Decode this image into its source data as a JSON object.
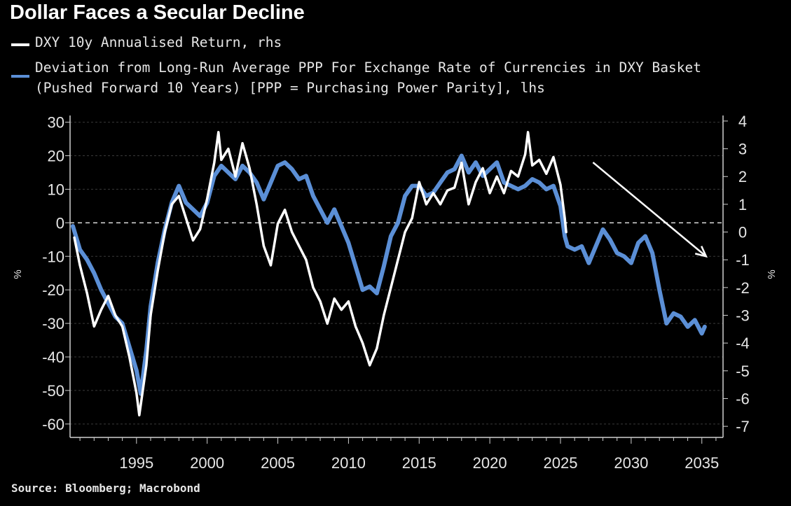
{
  "header": {
    "title": "Dollar Faces a Secular Decline"
  },
  "legend": {
    "white_label": "DXY 10y Annualised Return, rhs",
    "blue_label_line1": "Deviation from Long-Run Average PPP For Exchange Rate of Currencies in DXY Basket",
    "blue_label_line2": "(Pushed Forward 10 Years) [PPP = Purchasing Power Parity], lhs"
  },
  "footer": {
    "source": "Source: Bloomberg; Macrobond"
  },
  "chart_data": {
    "type": "line",
    "title": "Dollar Faces a Secular Decline",
    "x_ticks": [
      "1995",
      "2000",
      "2005",
      "2010",
      "2015",
      "2020",
      "2025",
      "2030",
      "2035"
    ],
    "x_range": [
      1990.3,
      2036.5
    ],
    "left_axis": {
      "label": "%",
      "ticks": [
        "30",
        "20",
        "10",
        "0",
        "-10",
        "-20",
        "-30",
        "-40",
        "-50",
        "-60"
      ],
      "range": [
        -64,
        32
      ]
    },
    "right_axis": {
      "label": "%",
      "ticks": [
        "4",
        "3",
        "2",
        "1",
        "0",
        "-1",
        "-2",
        "-3",
        "-4",
        "-5",
        "-6",
        "-7"
      ],
      "range": [
        -7.4,
        4.2
      ]
    },
    "grid": "horizontal dashed",
    "zero_line": "dashed",
    "annotation": "downward arrow from 2027 to 2035",
    "colors": {
      "blue": "#5b8fd6",
      "white": "#ffffff",
      "background": "#000000",
      "grid": "#3a3a3a"
    },
    "series": [
      {
        "name": "Deviation from Long-Run Average PPP For Exchange Rate of Currencies in DXY Basket (Pushed Forward 10 Years)",
        "axis": "left",
        "color": "#5b8fd6",
        "points": [
          [
            1990.5,
            -1
          ],
          [
            1991,
            -8
          ],
          [
            1991.5,
            -11
          ],
          [
            1992,
            -15
          ],
          [
            1992.5,
            -20
          ],
          [
            1993,
            -24
          ],
          [
            1993.5,
            -28
          ],
          [
            1994,
            -30
          ],
          [
            1994.5,
            -37
          ],
          [
            1995,
            -44
          ],
          [
            1995.3,
            -51
          ],
          [
            1995.7,
            -38
          ],
          [
            1996,
            -25
          ],
          [
            1996.5,
            -12
          ],
          [
            1997,
            -2
          ],
          [
            1997.5,
            6
          ],
          [
            1998,
            11
          ],
          [
            1998.5,
            6
          ],
          [
            1999,
            4
          ],
          [
            1999.5,
            2
          ],
          [
            2000,
            6
          ],
          [
            2000.5,
            14
          ],
          [
            2001,
            17
          ],
          [
            2001.5,
            15
          ],
          [
            2002,
            13
          ],
          [
            2002.5,
            17
          ],
          [
            2003,
            15
          ],
          [
            2003.5,
            12
          ],
          [
            2004,
            7
          ],
          [
            2004.5,
            12
          ],
          [
            2005,
            17
          ],
          [
            2005.5,
            18
          ],
          [
            2006,
            16
          ],
          [
            2006.5,
            13
          ],
          [
            2007,
            14
          ],
          [
            2007.5,
            8
          ],
          [
            2008,
            4
          ],
          [
            2008.5,
            0
          ],
          [
            2009,
            4
          ],
          [
            2009.5,
            -1
          ],
          [
            2010,
            -6
          ],
          [
            2010.5,
            -13
          ],
          [
            2011,
            -20
          ],
          [
            2011.5,
            -19
          ],
          [
            2012,
            -21
          ],
          [
            2012.5,
            -13
          ],
          [
            2013,
            -4
          ],
          [
            2013.5,
            0
          ],
          [
            2014,
            8
          ],
          [
            2014.5,
            11
          ],
          [
            2015,
            11
          ],
          [
            2015.5,
            8
          ],
          [
            2016,
            9
          ],
          [
            2016.5,
            12
          ],
          [
            2017,
            15
          ],
          [
            2017.5,
            16
          ],
          [
            2018,
            20
          ],
          [
            2018.5,
            15
          ],
          [
            2019,
            18
          ],
          [
            2019.5,
            14
          ],
          [
            2020,
            16
          ],
          [
            2020.5,
            18
          ],
          [
            2021,
            12
          ],
          [
            2021.5,
            11
          ],
          [
            2022,
            10
          ],
          [
            2022.5,
            11
          ],
          [
            2023,
            13
          ],
          [
            2023.5,
            12
          ],
          [
            2024,
            10
          ],
          [
            2024.5,
            11
          ],
          [
            2025,
            5
          ],
          [
            2025.3,
            -4
          ],
          [
            2025.5,
            -7
          ],
          [
            2026,
            -8
          ],
          [
            2026.5,
            -7
          ],
          [
            2027,
            -12
          ],
          [
            2027.5,
            -7
          ],
          [
            2028,
            -2
          ],
          [
            2028.5,
            -5
          ],
          [
            2029,
            -9
          ],
          [
            2029.5,
            -10
          ],
          [
            2030,
            -12
          ],
          [
            2030.5,
            -6
          ],
          [
            2031,
            -4
          ],
          [
            2031.5,
            -9
          ],
          [
            2032,
            -20
          ],
          [
            2032.5,
            -30
          ],
          [
            2033,
            -27
          ],
          [
            2033.5,
            -28
          ],
          [
            2034,
            -31
          ],
          [
            2034.5,
            -29
          ],
          [
            2035,
            -33
          ],
          [
            2035.2,
            -31
          ]
        ]
      },
      {
        "name": "DXY 10y Annualised Return",
        "axis": "right",
        "color": "#ffffff",
        "points": [
          [
            1990.6,
            -0.2
          ],
          [
            1991,
            -1.2
          ],
          [
            1991.5,
            -2.2
          ],
          [
            1992,
            -3.4
          ],
          [
            1992.5,
            -2.8
          ],
          [
            1993,
            -2.3
          ],
          [
            1993.5,
            -3.0
          ],
          [
            1994,
            -3.4
          ],
          [
            1994.5,
            -4.5
          ],
          [
            1995,
            -5.8
          ],
          [
            1995.2,
            -6.6
          ],
          [
            1995.7,
            -4.8
          ],
          [
            1996,
            -3.0
          ],
          [
            1996.5,
            -1.4
          ],
          [
            1997,
            0.0
          ],
          [
            1997.5,
            1.0
          ],
          [
            1998,
            1.3
          ],
          [
            1998.5,
            0.5
          ],
          [
            1999,
            -0.3
          ],
          [
            1999.5,
            0.1
          ],
          [
            2000,
            1.2
          ],
          [
            2000.5,
            2.5
          ],
          [
            2000.8,
            3.6
          ],
          [
            2001,
            2.6
          ],
          [
            2001.5,
            3.0
          ],
          [
            2002,
            2.0
          ],
          [
            2002.5,
            3.2
          ],
          [
            2003,
            2.3
          ],
          [
            2003.5,
            1.0
          ],
          [
            2004,
            -0.5
          ],
          [
            2004.5,
            -1.2
          ],
          [
            2005,
            0.3
          ],
          [
            2005.5,
            0.8
          ],
          [
            2006,
            0.0
          ],
          [
            2006.5,
            -0.5
          ],
          [
            2007,
            -1.0
          ],
          [
            2007.5,
            -2.0
          ],
          [
            2008,
            -2.5
          ],
          [
            2008.5,
            -3.3
          ],
          [
            2009,
            -2.4
          ],
          [
            2009.5,
            -2.8
          ],
          [
            2010,
            -2.5
          ],
          [
            2010.5,
            -3.4
          ],
          [
            2011,
            -4.0
          ],
          [
            2011.5,
            -4.8
          ],
          [
            2012,
            -4.2
          ],
          [
            2012.5,
            -3.0
          ],
          [
            2013,
            -2.0
          ],
          [
            2013.5,
            -1.0
          ],
          [
            2014,
            0.0
          ],
          [
            2014.5,
            0.5
          ],
          [
            2015,
            1.8
          ],
          [
            2015.5,
            1.0
          ],
          [
            2016,
            1.4
          ],
          [
            2016.5,
            1.0
          ],
          [
            2017,
            1.5
          ],
          [
            2017.5,
            1.6
          ],
          [
            2018,
            2.5
          ],
          [
            2018.5,
            1.0
          ],
          [
            2019,
            1.8
          ],
          [
            2019.5,
            2.3
          ],
          [
            2020,
            1.4
          ],
          [
            2020.5,
            2.0
          ],
          [
            2021,
            1.4
          ],
          [
            2021.5,
            2.2
          ],
          [
            2022,
            2.0
          ],
          [
            2022.5,
            2.8
          ],
          [
            2022.7,
            3.6
          ],
          [
            2023,
            2.4
          ],
          [
            2023.5,
            2.6
          ],
          [
            2024,
            2.1
          ],
          [
            2024.5,
            2.7
          ],
          [
            2025,
            1.7
          ],
          [
            2025.3,
            0.5
          ],
          [
            2025.4,
            0.0
          ]
        ]
      }
    ]
  }
}
